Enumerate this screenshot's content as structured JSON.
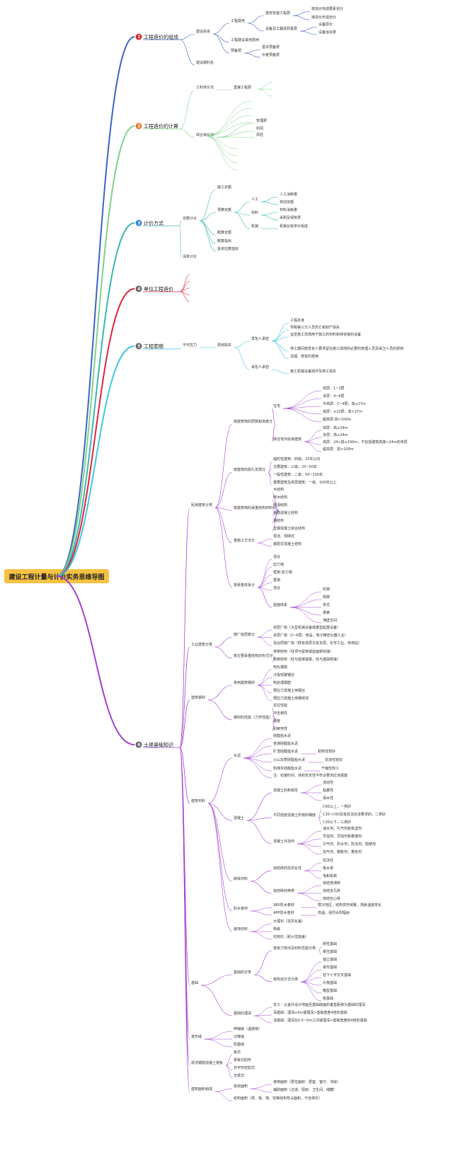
{
  "root": "建设工程计量与计价实务思维导图",
  "branches": [
    {
      "id": "b1",
      "num": "1",
      "title": "工程造价的组成",
      "color": "#3b63c4",
      "badge": "#d32f2f",
      "items": [
        "建设投资",
        "工程费用",
        "建安安装工程费",
        "按造价构成要素划分",
        "按造价形成划分",
        "设备及工器具购置费",
        "设备原价",
        "设备运杂费",
        "工程建设其他费用",
        "预备费",
        "基本预备费",
        "价差预备费",
        "建设期利息"
      ]
    },
    {
      "id": "b2",
      "num": "2",
      "title": "工程造价的计算",
      "color": "#7fd18a",
      "badge": "#e8782a",
      "items": [
        "工料单价法",
        "直接工程费",
        "综合单价法",
        "管理费",
        "利润",
        "风险"
      ]
    },
    {
      "id": "b3",
      "num": "3",
      "title": "计价方式",
      "color": "#39b6b0",
      "badge": "#2f86d6",
      "items": [
        "定额计价",
        "施工定额",
        "预算定额",
        "人工",
        "人工消耗量",
        "劳动定额",
        "材料",
        "材料消耗量",
        "采购及保管费",
        "机械",
        "机械台班单价组成",
        "概算定额",
        "概算指标",
        "投资估算指标",
        "清单计价"
      ]
    },
    {
      "id": "b4",
      "num": "4",
      "title": "单位工程造价",
      "color": "#e0233c",
      "badge": "#666666",
      "items": []
    },
    {
      "id": "b5",
      "num": "5",
      "title": "工程索赔",
      "color": "#3ec6e0",
      "badge": "#666666",
      "items": [
        "不可抗力",
        "费用损失",
        "发包人承担",
        "工程本身",
        "导致第三方人员伤亡和财产损失",
        "运至施工现场用于施工的材料和待安装的设备",
        "停工期间按发包人要求留在施工场地的必要的管理人员及保卫人员的费用",
        "清理、修复的费用",
        "承包人承担",
        "施工机械设备损坏及停工损失"
      ]
    },
    {
      "id": "b6",
      "num": "6",
      "title": "土建基础知识",
      "color": "#a23fd1",
      "badge": "#666666",
      "items": [
        "民用建筑分类",
        "按建筑物的层数和高度分",
        "住宅",
        "低层：1~3层",
        "多层：4~6层",
        "中高层：7~9层，高≤27m",
        "高层：≥10层，高>27m",
        "超高层:高>100m",
        "除住宅外民用建筑",
        "单层：高≤24m",
        "多层：高≤24m",
        "高层：24<高≤100m，不包括建筑高度>24m的单层",
        "超高层：高>100m",
        "按建筑的耐久年限分",
        "临时性建筑：四级，15年以内",
        "次要建筑：三级，25~50年",
        "一般性建筑：二级，50~100年",
        "重要建筑及高层建筑：一级，100年以上",
        "按建筑物的承重结构材料分",
        "木结构",
        "砖木结构",
        "砖混结构",
        "钢筋混凝土结构",
        "钢结构",
        "型钢混凝土组合结构",
        "按施工方法分",
        "现浇、现砌式",
        "装配式混凝土结构",
        "按承重体系分",
        "混合",
        "剪力墙",
        "框架-剪力墙",
        "框架",
        "混合",
        "屋面体系",
        "桁架",
        "网架",
        "拱式",
        "悬索",
        "薄壁空间",
        "工业建筑分类",
        "按厂房层数分",
        "单层厂房（大型机械设备或重型起重设备）",
        "多层厂房（2~6层，食品、电子精密仪器工业）",
        "混合层数厂房（既有单层又有多层，化学工业、热电站）",
        "按主要承重结构的形式分",
        "排架结构（柱顶与屋架或屋面梁铰接）",
        "刚架结构（柱与屋架或梁，柱与基础刚接）",
        "建筑钢材",
        "常用建筑钢材",
        "热轧钢筋",
        "冷拔低碳钢丝",
        "热处理钢筋",
        "预应力混凝土用钢丝",
        "预应力混凝土用钢绞线",
        "钢材的性能（力学性能）",
        "抗拉性能",
        "冲击韧性",
        "硬度",
        "耐疲劳性",
        "建筑材料",
        "水泥",
        "硅酸盐水泥",
        "普通硅酸盐水泥",
        "矿渣硅酸盐水泥",
        "耐热性较好",
        "火山灰质硅酸盐水泥",
        "抗渗性较好",
        "粉煤灰硅酸盐水泥",
        "干缩性较小",
        "注：初凝时间、体积安定性不符合要求应该报废",
        "混凝土",
        "混凝土的和易性",
        "流动性",
        "粘聚性",
        "保水性",
        "不同强度混凝土所用砂细度",
        "C60以上，一类砂",
        "C30~C60及有抗冻抗渗要求的，二类砂",
        "C30以下，三类砂",
        "混凝土外加剂",
        "减水剂、引气剂和泵送剂",
        "早强剂、早强剂和着凝剂",
        "引气剂、防水剂、防冻剂、阻锈剂",
        "加气剂、膨胀剂、着色剂",
        "砌体材料",
        "烧结砖的抗风化性",
        "抗冻性",
        "吸水率",
        "饱和系数",
        "烧结砖的种类",
        "烧结普通砖",
        "烧结多孔砖",
        "烧结空心砖",
        "防水卷材",
        "SBS防水卷材",
        "寒冷地区，结构变形频繁、热胀温度变化",
        "APP防水卷材",
        "高温、强烈太阳辐射",
        "装饰材料",
        "大理石（抗风化差）",
        "陶瓷",
        "花岗石（耐火性能差）",
        "基础",
        "基础的分类",
        "按受力特点及材料性能分类",
        "刚性基础",
        "柔性基础",
        "按构造方式分类",
        "独立基础",
        "条形基础",
        "柱下十字交叉基础",
        "片筏基础",
        "箱型基础",
        "桩基础",
        "基础的埋深",
        "定义：从室外设计地面至基础底面的垂直距离为基础的埋深",
        "深基础：埋深≥5m或埋深>基础宽度4倍的基础",
        "浅基础：埋深在0.5~5m之间或埋深<基础宽度的4倍的基础",
        "变形缝",
        "伸缩缝（温度缝）",
        "沉降缝",
        "防震缝",
        "现浇钢筋混凝土楼板",
        "板式",
        "梁板式肋形",
        "井字形密肋式",
        "无梁式",
        "建筑面积组成",
        "有效面积",
        "使用面积（居住面积：居室、客厅、书房）",
        "辅助面积（过道、厨房、卫生间、储藏）",
        "结构面积（梁、板、墙、柱等结构所占面积，不含抹灰）"
      ]
    }
  ]
}
